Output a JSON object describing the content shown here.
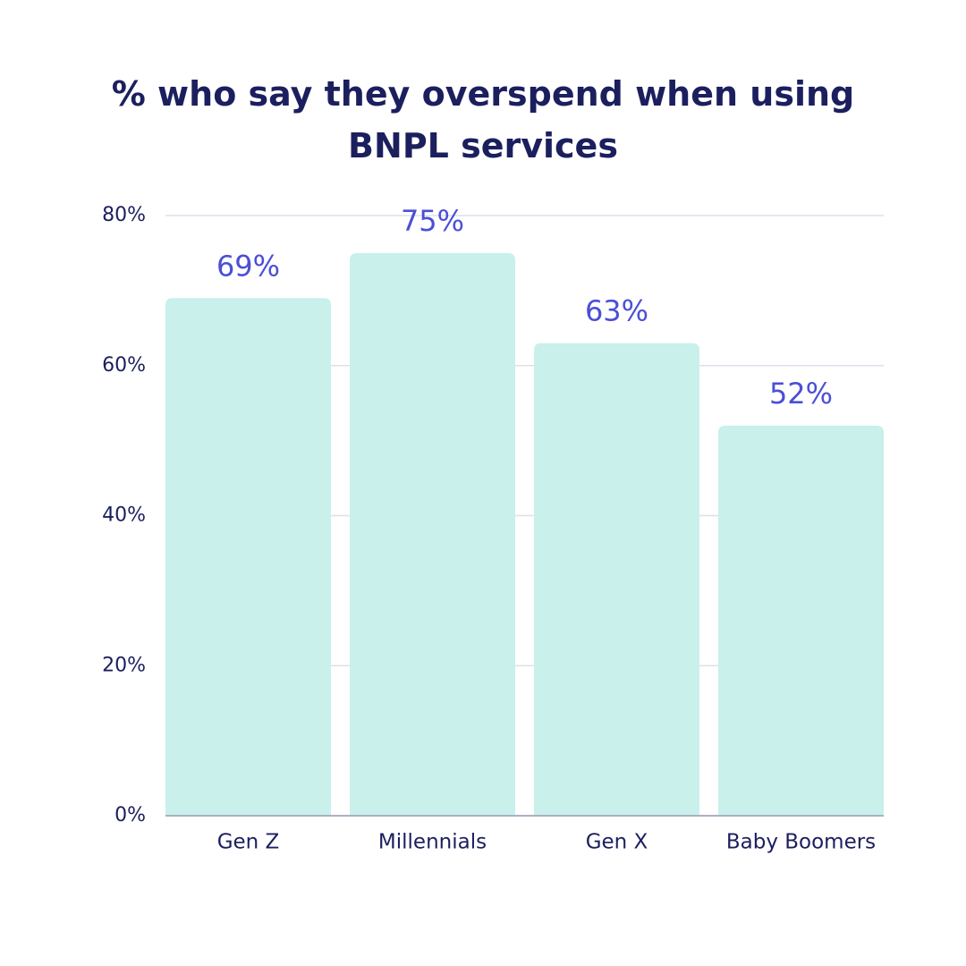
{
  "chart_data": {
    "type": "bar",
    "title": "% who say they overspend when using BNPL services",
    "categories": [
      "Gen Z",
      "Millennials",
      "Gen X",
      "Baby Boomers"
    ],
    "values": [
      69,
      75,
      63,
      52
    ],
    "value_labels": [
      "69%",
      "75%",
      "63%",
      "52%"
    ],
    "color": "#c9f0eb",
    "ylim": [
      0,
      80
    ],
    "yticks": [
      {
        "value": 0,
        "label": "0%"
      },
      {
        "value": 20,
        "label": "20%"
      },
      {
        "value": 40,
        "label": "40%"
      },
      {
        "value": 60,
        "label": "60%"
      },
      {
        "value": 80,
        "label": "80%"
      }
    ],
    "grid": true
  }
}
